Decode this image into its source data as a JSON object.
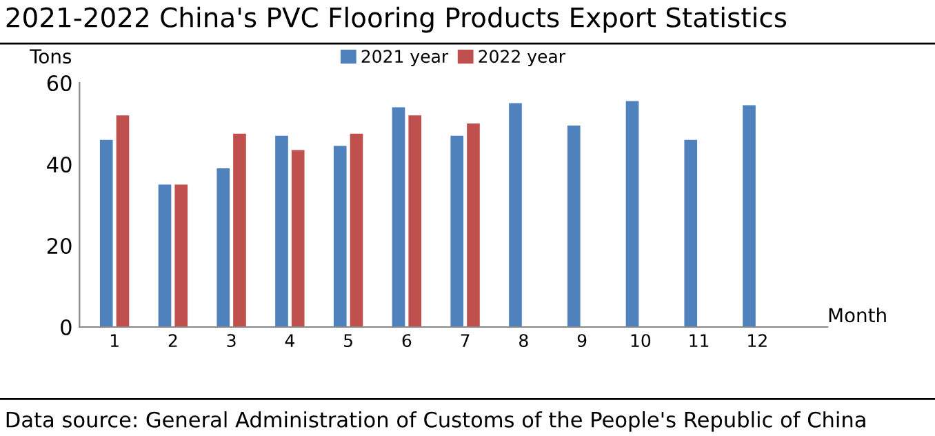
{
  "chart_data": {
    "type": "bar",
    "title": "2021-2022 China's PVC Flooring Products Export Statistics",
    "ylabel": "Tons",
    "xlabel": "Month",
    "categories": [
      "1",
      "2",
      "3",
      "4",
      "5",
      "6",
      "7",
      "8",
      "9",
      "10",
      "11",
      "12"
    ],
    "series": [
      {
        "name": "2021 year",
        "color": "#4f81bd",
        "values": [
          46,
          35,
          39,
          47,
          44.5,
          54,
          47,
          55,
          49.5,
          55.5,
          46,
          54.5
        ]
      },
      {
        "name": "2022 year",
        "color": "#c0504d",
        "values": [
          52,
          35,
          47.5,
          43.5,
          47.5,
          52,
          50,
          null,
          null,
          null,
          null,
          null
        ]
      }
    ],
    "ylim": [
      0,
      60
    ],
    "yticks": [
      0,
      20,
      40,
      60
    ],
    "grid": false,
    "legend": "top",
    "annotations": [
      "Data source: General Administration of Customs of the People's Republic of China"
    ]
  }
}
